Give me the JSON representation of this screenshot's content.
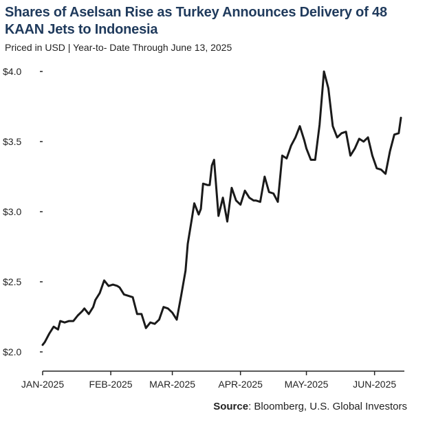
{
  "header": {
    "title": "Shares of Aselsan Rise as Turkey Announces Delivery of 48 KAAN Jets to Indonesia",
    "subtitle": "Priced in USD | Year-to- Date Through June 13, 2025"
  },
  "footer": {
    "source_label": "Source",
    "source_text": ": Bloomberg, U.S. Global Investors"
  },
  "colors": {
    "title": "#1f3a5c",
    "line": "#1a1a1a",
    "axis": "#222222"
  },
  "chart_data": {
    "type": "line",
    "title": "Shares of Aselsan Rise as Turkey Announces Delivery of 48 KAAN Jets to Indonesia",
    "subtitle": "Priced in USD | Year-to- Date Through June 13, 2025",
    "xlabel": "",
    "ylabel": "",
    "x_range": [
      "2025-01-01",
      "2025-06-13"
    ],
    "ylim": [
      2.0,
      4.0
    ],
    "yticks": [
      2.0,
      2.5,
      3.0,
      3.5,
      4.0
    ],
    "ytick_labels": [
      "$2.0",
      "$2.5",
      "$3.0",
      "$3.5",
      "$4.0"
    ],
    "xticks": [
      "2025-01-01",
      "2025-02-01",
      "2025-03-01",
      "2025-04-01",
      "2025-05-01",
      "2025-06-01"
    ],
    "xtick_labels": [
      "JAN-2025",
      "FEB-2025",
      "MAR-2025",
      "APR-2025",
      "MAY-2025",
      "JUN-2025"
    ],
    "grid": false,
    "legend": "none",
    "x": [
      "2025-01-01",
      "2025-01-02",
      "2025-01-04",
      "2025-01-06",
      "2025-01-08",
      "2025-01-09",
      "2025-01-11",
      "2025-01-13",
      "2025-01-15",
      "2025-01-17",
      "2025-01-19",
      "2025-01-20",
      "2025-01-22",
      "2025-01-24",
      "2025-01-25",
      "2025-01-27",
      "2025-01-29",
      "2025-01-31",
      "2025-02-02",
      "2025-02-04",
      "2025-02-05",
      "2025-02-07",
      "2025-02-09",
      "2025-02-11",
      "2025-02-13",
      "2025-02-15",
      "2025-02-17",
      "2025-02-19",
      "2025-02-21",
      "2025-02-23",
      "2025-02-25",
      "2025-02-27",
      "2025-03-01",
      "2025-03-03",
      "2025-03-05",
      "2025-03-07",
      "2025-03-08",
      "2025-03-10",
      "2025-03-11",
      "2025-03-13",
      "2025-03-14",
      "2025-03-15",
      "2025-03-17",
      "2025-03-18",
      "2025-03-19",
      "2025-03-20",
      "2025-03-22",
      "2025-03-24",
      "2025-03-26",
      "2025-03-28",
      "2025-03-30",
      "2025-04-01",
      "2025-04-03",
      "2025-04-05",
      "2025-04-07",
      "2025-04-08",
      "2025-04-10",
      "2025-04-12",
      "2025-04-14",
      "2025-04-16",
      "2025-04-18",
      "2025-04-20",
      "2025-04-22",
      "2025-04-24",
      "2025-04-26",
      "2025-04-28",
      "2025-04-30",
      "2025-05-01",
      "2025-05-03",
      "2025-05-05",
      "2025-05-07",
      "2025-05-09",
      "2025-05-11",
      "2025-05-13",
      "2025-05-15",
      "2025-05-17",
      "2025-05-19",
      "2025-05-21",
      "2025-05-23",
      "2025-05-25",
      "2025-05-27",
      "2025-05-29",
      "2025-05-31",
      "2025-06-02",
      "2025-06-04",
      "2025-06-06",
      "2025-06-08",
      "2025-06-10",
      "2025-06-12",
      "2025-06-13"
    ],
    "series": [
      {
        "values": [
          2.05,
          2.07,
          2.13,
          2.18,
          2.16,
          2.22,
          2.21,
          2.22,
          2.22,
          2.26,
          2.29,
          2.31,
          2.27,
          2.32,
          2.37,
          2.42,
          2.51,
          2.47,
          2.48,
          2.47,
          2.46,
          2.41,
          2.4,
          2.39,
          2.27,
          2.27,
          2.17,
          2.21,
          2.2,
          2.23,
          2.32,
          2.31,
          2.28,
          2.23,
          2.4,
          2.58,
          2.77,
          2.96,
          3.06,
          2.98,
          3.02,
          3.2,
          3.19,
          3.19,
          3.33,
          3.37,
          2.97,
          3.1,
          2.93,
          3.17,
          3.08,
          3.05,
          3.15,
          3.1,
          3.08,
          3.08,
          3.07,
          3.25,
          3.14,
          3.13,
          3.07,
          3.4,
          3.38,
          3.47,
          3.53,
          3.61,
          3.51,
          3.45,
          3.37,
          3.37,
          3.62,
          4.0,
          3.88,
          3.61,
          3.53,
          3.56,
          3.57,
          3.4,
          3.45,
          3.52,
          3.5,
          3.53,
          3.4,
          3.31,
          3.3,
          3.27,
          3.43,
          3.55,
          3.56,
          3.67
        ]
      }
    ]
  }
}
